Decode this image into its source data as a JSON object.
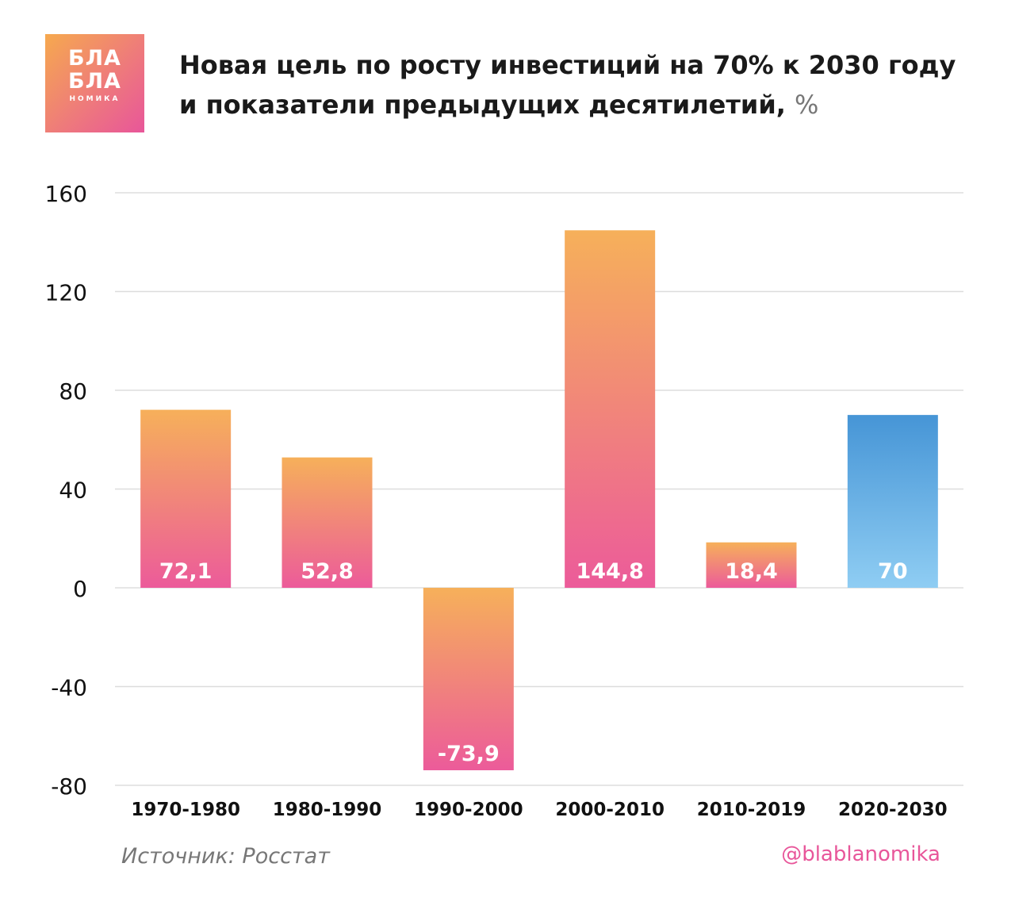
{
  "logo": {
    "line1": "БЛА",
    "line2": "БЛА",
    "sub": "НОМИКА"
  },
  "title": {
    "line1": "Новая цель по росту инвестиций на 70% к 2030 году",
    "line2": "и показатели предыдущих десятилетий,",
    "unit": "%"
  },
  "source": "Источник: Росстат",
  "handle": "@blablanomika",
  "colors": {
    "history_top": "#f6b05a",
    "history_bottom": "#ec5b9a",
    "target_top": "#4695d6",
    "target_bottom": "#8fcdf3",
    "grid": "#dddddd",
    "axis_text": "#111111",
    "label_text": "#ffffff"
  },
  "chart_data": {
    "type": "bar",
    "title": "Новая цель по росту инвестиций на 70% к 2030 году и показатели предыдущих десятилетий, %",
    "categories": [
      "1970-1980",
      "1980-1990",
      "1990-2000",
      "2000-2010",
      "2010-2019",
      "2020-2030"
    ],
    "values": [
      72.1,
      52.8,
      -73.9,
      144.8,
      18.4,
      70
    ],
    "labels": [
      "72,1",
      "52,8",
      "-73,9",
      "144,8",
      "18,4",
      "70"
    ],
    "bar_style": [
      "history",
      "history",
      "history",
      "history",
      "history",
      "target"
    ],
    "ylim": [
      -80,
      160
    ],
    "yticks": [
      160,
      120,
      80,
      40,
      0,
      -40,
      -80
    ],
    "grid": true,
    "xlabel": "",
    "ylabel": ""
  }
}
